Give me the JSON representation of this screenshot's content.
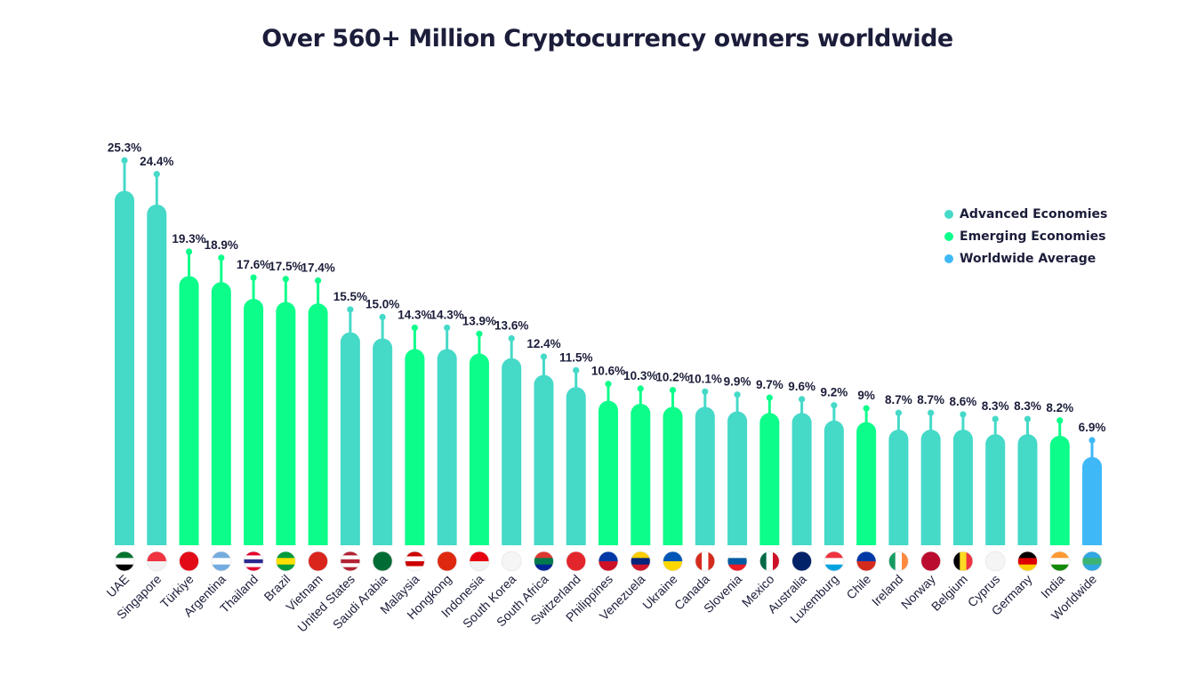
{
  "chart_data": {
    "type": "bar",
    "title": "Over 560+ Million Cryptocurrency owners worldwide",
    "xlabel": "",
    "ylabel": "",
    "ylim": [
      0,
      26
    ],
    "grid": false,
    "legend_position": "top-right",
    "colors": {
      "Advanced Economies": "#45d9c8",
      "Emerging Economies": "#0dfd8a",
      "Worldwide Average": "#3fb8f8"
    },
    "legend": [
      "Advanced Economies",
      "Emerging Economies",
      "Worldwide Average"
    ],
    "categories": [
      "UAE",
      "Singapore",
      "Türkiye",
      "Argentina",
      "Thailand",
      "Brazil",
      "Vietnam",
      "United States",
      "Saudi Arabia",
      "Malaysia",
      "Hongkong",
      "Indonesia",
      "South Korea",
      "South Africa",
      "Switzerland",
      "Philippines",
      "Venezuela",
      "Ukraine",
      "Canada",
      "Slovenia",
      "Mexico",
      "Australia",
      "Luxemburg",
      "Chile",
      "Ireland",
      "Norway",
      "Belgium",
      "Cyprus",
      "Germany",
      "India",
      "Worldwide"
    ],
    "values": [
      25.3,
      24.4,
      19.3,
      18.9,
      17.6,
      17.5,
      17.4,
      15.5,
      15.0,
      14.3,
      14.3,
      13.9,
      13.6,
      12.4,
      11.5,
      10.6,
      10.3,
      10.2,
      10.1,
      9.9,
      9.7,
      9.6,
      9.2,
      9.0,
      8.7,
      8.7,
      8.6,
      8.3,
      8.3,
      8.2,
      6.9
    ],
    "labels": [
      "25.3%",
      "24.4%",
      "19.3%",
      "18.9%",
      "17.6%",
      "17.5%",
      "17.4%",
      "15.5%",
      "15.0%",
      "14.3%",
      "14.3%",
      "13.9%",
      "13.6%",
      "12.4%",
      "11.5%",
      "10.6%",
      "10.3%",
      "10.2%",
      "10.1%",
      "9.9%",
      "9.7%",
      "9.6%",
      "9.2%",
      "9%",
      "8.7%",
      "8.7%",
      "8.6%",
      "8.3%",
      "8.3%",
      "8.2%",
      "6.9%"
    ],
    "bar_levels": [
      23.3,
      22.4,
      17.7,
      17.3,
      16.2,
      16.0,
      15.9,
      14.0,
      13.6,
      12.9,
      12.9,
      12.6,
      12.3,
      11.2,
      10.4,
      9.5,
      9.3,
      9.1,
      9.1,
      8.8,
      8.7,
      8.7,
      8.2,
      8.1,
      7.6,
      7.6,
      7.6,
      7.3,
      7.3,
      7.2,
      5.8
    ],
    "groups": [
      "Advanced Economies",
      "Advanced Economies",
      "Emerging Economies",
      "Emerging Economies",
      "Emerging Economies",
      "Emerging Economies",
      "Emerging Economies",
      "Advanced Economies",
      "Advanced Economies",
      "Emerging Economies",
      "Advanced Economies",
      "Emerging Economies",
      "Advanced Economies",
      "Advanced Economies",
      "Advanced Economies",
      "Emerging Economies",
      "Emerging Economies",
      "Emerging Economies",
      "Advanced Economies",
      "Advanced Economies",
      "Emerging Economies",
      "Advanced Economies",
      "Advanced Economies",
      "Emerging Economies",
      "Advanced Economies",
      "Advanced Economies",
      "Advanced Economies",
      "Advanced Economies",
      "Advanced Economies",
      "Emerging Economies",
      "Worldwide Average"
    ],
    "flags": [
      {
        "o": "h",
        "c": [
          "#00732f",
          "#ffffff",
          "#000000"
        ]
      },
      {
        "o": "h",
        "c": [
          "#ef3340",
          "#f2f2f2"
        ]
      },
      {
        "o": "h",
        "c": [
          "#e30a17"
        ]
      },
      {
        "o": "h",
        "c": [
          "#74acdf",
          "#ffffff",
          "#74acdf"
        ]
      },
      {
        "o": "h",
        "c": [
          "#e4002b",
          "#ffffff",
          "#2d2a8f",
          "#ffffff",
          "#e4002b"
        ]
      },
      {
        "o": "h",
        "c": [
          "#009c3b",
          "#ffdf00",
          "#009c3b"
        ]
      },
      {
        "o": "h",
        "c": [
          "#da251d"
        ]
      },
      {
        "o": "h",
        "c": [
          "#b22234",
          "#ffffff",
          "#b22234",
          "#ffffff",
          "#b22234"
        ]
      },
      {
        "o": "h",
        "c": [
          "#006c35"
        ]
      },
      {
        "o": "h",
        "c": [
          "#cc0001",
          "#ffffff",
          "#cc0001",
          "#ffffff"
        ]
      },
      {
        "o": "h",
        "c": [
          "#de2910"
        ]
      },
      {
        "o": "h",
        "c": [
          "#e70011",
          "#f2f2f2"
        ]
      },
      {
        "o": "h",
        "c": [
          "#f5f5f5"
        ]
      },
      {
        "o": "h",
        "c": [
          "#de3831",
          "#007a4d",
          "#002395"
        ]
      },
      {
        "o": "h",
        "c": [
          "#e3262b"
        ]
      },
      {
        "o": "h",
        "c": [
          "#0038a8",
          "#ce1126"
        ]
      },
      {
        "o": "h",
        "c": [
          "#ffcc00",
          "#00247d",
          "#cf142b"
        ]
      },
      {
        "o": "h",
        "c": [
          "#0057b7",
          "#ffd700"
        ]
      },
      {
        "o": "v",
        "c": [
          "#d52b1e",
          "#ffffff",
          "#d52b1e"
        ]
      },
      {
        "o": "h",
        "c": [
          "#ffffff",
          "#005da4",
          "#ed1c24"
        ]
      },
      {
        "o": "v",
        "c": [
          "#006847",
          "#ffffff",
          "#ce1126"
        ]
      },
      {
        "o": "h",
        "c": [
          "#012169"
        ]
      },
      {
        "o": "h",
        "c": [
          "#ef3340",
          "#ffffff",
          "#00a3e0"
        ]
      },
      {
        "o": "h",
        "c": [
          "#0039a6",
          "#d52b1e"
        ]
      },
      {
        "o": "v",
        "c": [
          "#169b62",
          "#ffffff",
          "#ff883e"
        ]
      },
      {
        "o": "h",
        "c": [
          "#ba0c2f"
        ]
      },
      {
        "o": "v",
        "c": [
          "#000000",
          "#fdda24",
          "#ef3340"
        ]
      },
      {
        "o": "h",
        "c": [
          "#f5f5f5"
        ]
      },
      {
        "o": "h",
        "c": [
          "#000000",
          "#dd0000",
          "#ffce00"
        ]
      },
      {
        "o": "h",
        "c": [
          "#ff9933",
          "#ffffff",
          "#138808"
        ]
      },
      {
        "o": "h",
        "c": [
          "#2fa7e0",
          "#3cb371",
          "#2fa7e0"
        ]
      }
    ]
  }
}
